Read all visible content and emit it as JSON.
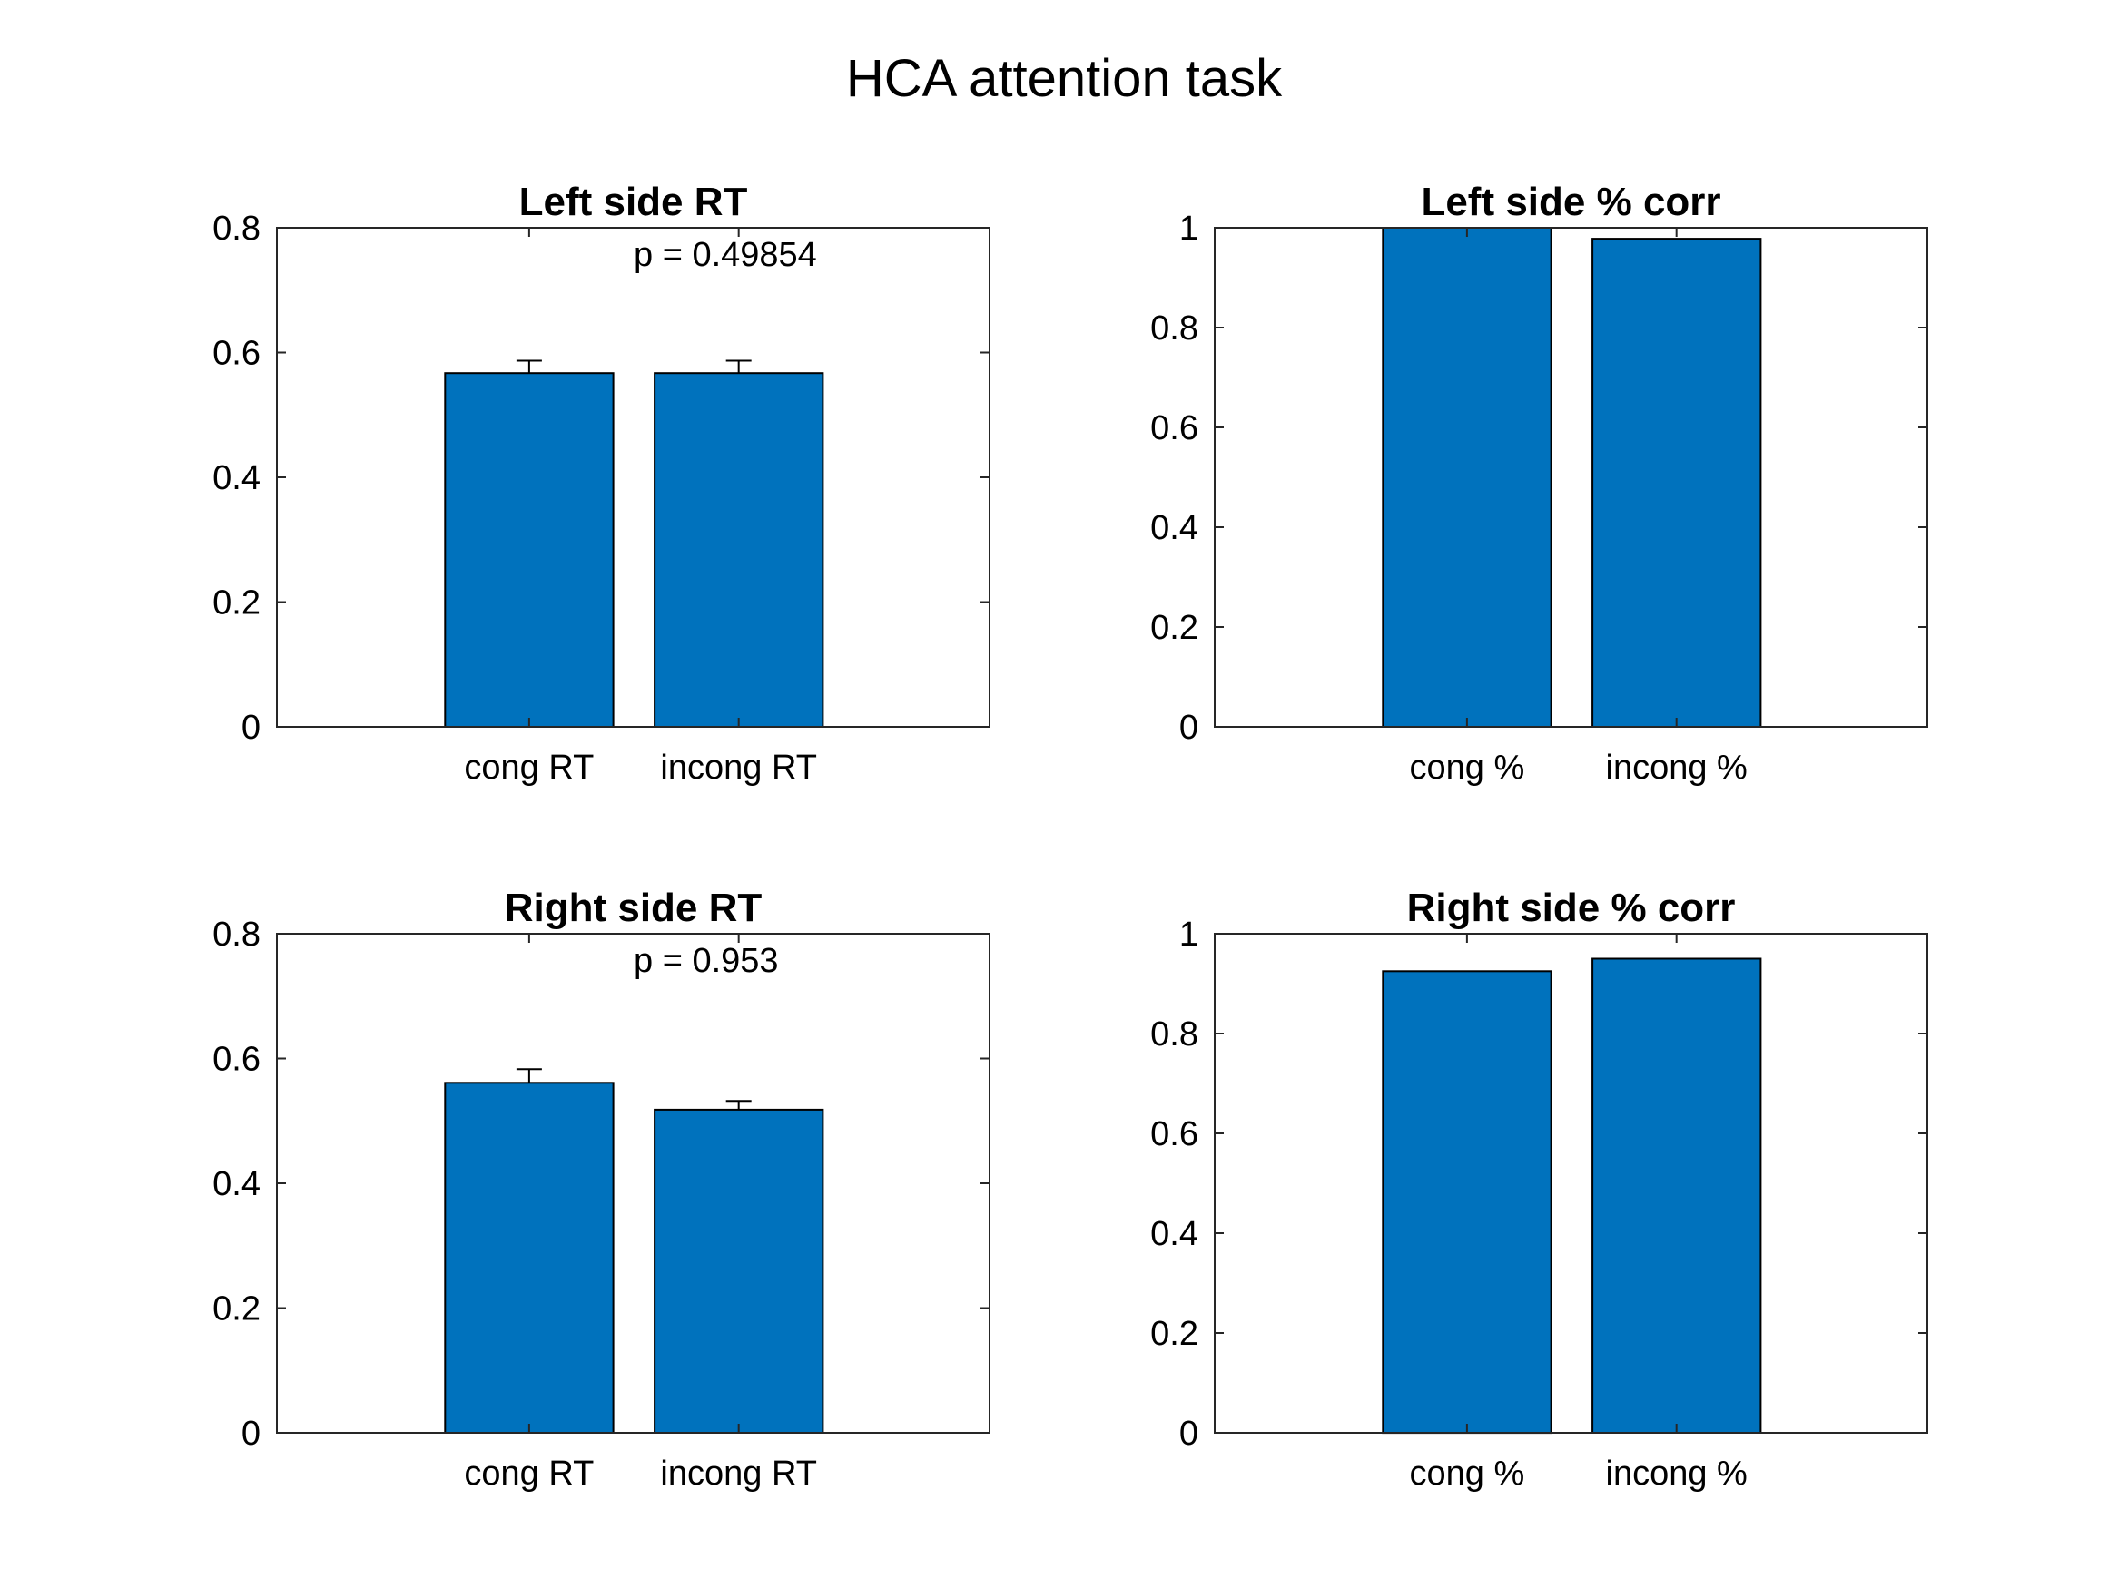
{
  "figure": {
    "suptitle": "HCA attention task"
  },
  "style": {
    "bar_color": "#0072BD",
    "bar_edge": "#000000",
    "axis_color": "#262626"
  },
  "chart_data": [
    {
      "type": "bar",
      "title": "Left side RT",
      "categories": [
        "cong RT",
        "incong RT"
      ],
      "values": [
        0.567,
        0.567
      ],
      "errors": [
        0.02,
        0.02
      ],
      "ylim": [
        0,
        0.8
      ],
      "yticks": [
        "0",
        "0.2",
        "0.4",
        "0.6",
        "0.8"
      ],
      "annotation": "p = 0.49854",
      "grid": false
    },
    {
      "type": "bar",
      "title": "Left side % corr",
      "categories": [
        "cong %",
        "incong %"
      ],
      "values": [
        1.0,
        0.978
      ],
      "ylim": [
        0,
        1
      ],
      "yticks": [
        "0",
        "0.2",
        "0.4",
        "0.6",
        "0.8",
        "1"
      ],
      "grid": false
    },
    {
      "type": "bar",
      "title": "Right side RT",
      "categories": [
        "cong RT",
        "incong RT"
      ],
      "values": [
        0.561,
        0.518
      ],
      "errors": [
        0.022,
        0.014
      ],
      "ylim": [
        0,
        0.8
      ],
      "yticks": [
        "0",
        "0.2",
        "0.4",
        "0.6",
        "0.8"
      ],
      "annotation": "p = 0.953",
      "grid": false
    },
    {
      "type": "bar",
      "title": "Right side % corr",
      "categories": [
        "cong %",
        "incong %"
      ],
      "values": [
        0.925,
        0.95
      ],
      "ylim": [
        0,
        1
      ],
      "yticks": [
        "0",
        "0.2",
        "0.4",
        "0.6",
        "0.8",
        "1"
      ],
      "grid": false
    }
  ]
}
